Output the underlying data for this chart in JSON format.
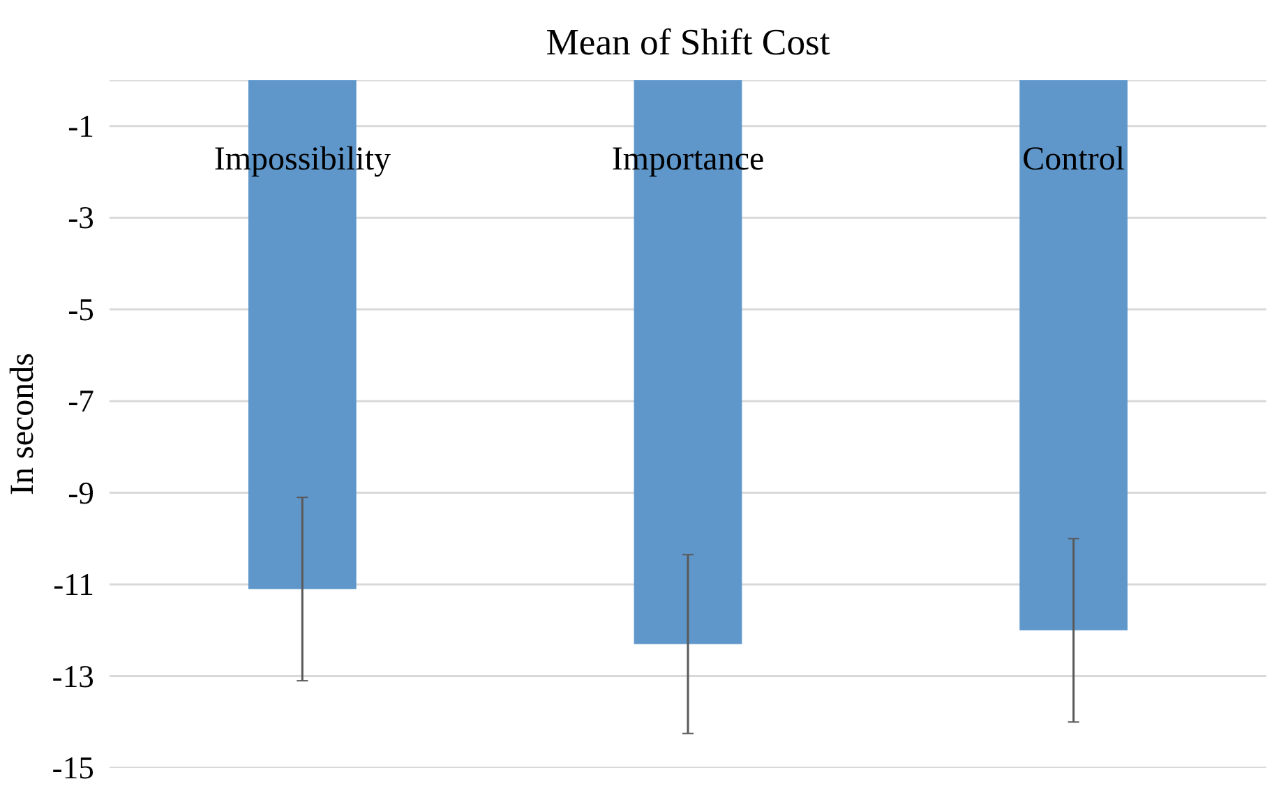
{
  "chart_data": {
    "type": "bar",
    "title": "Mean of Shift Cost",
    "ylabel": "In seconds",
    "categories": [
      "Impossibility",
      "Importance",
      "Control"
    ],
    "values": [
      -11.1,
      -12.3,
      -12.0
    ],
    "errors": [
      2.0,
      1.95,
      2.0
    ],
    "color": "#5f97cb",
    "ylim": [
      -15,
      0
    ],
    "yticks": [
      {
        "value": 0,
        "label": null
      },
      -1,
      -3,
      -5,
      -7,
      -9,
      -11,
      -13,
      -15
    ],
    "grid": "y"
  }
}
